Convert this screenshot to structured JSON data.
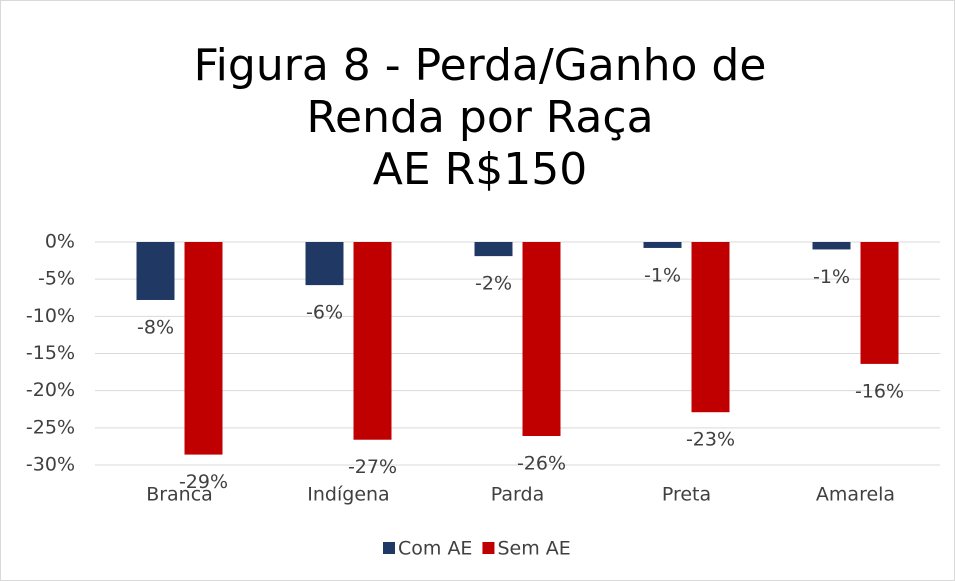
{
  "chart_data": {
    "type": "bar",
    "title": "Figura 8 - Perda/Ganho de Renda por Raça",
    "subtitle": "AE R$150",
    "categories": [
      "Branca",
      "Indígena",
      "Parda",
      "Preta",
      "Amarela"
    ],
    "series": [
      {
        "name": "Com AE",
        "color": "#1f3864",
        "values": [
          -7.8,
          -5.8,
          -1.9,
          -0.8,
          -1.0
        ],
        "value_labels": [
          "-8%",
          "-6%",
          "-2%",
          "-1%",
          "-1%"
        ]
      },
      {
        "name": "Sem AE",
        "color": "#c00000",
        "values": [
          -28.6,
          -26.6,
          -26.1,
          -22.9,
          -16.4
        ],
        "value_labels": [
          "-29%",
          "-27%",
          "-26%",
          "-23%",
          "-16%"
        ]
      }
    ],
    "ylim": [
      -30,
      0
    ],
    "yticks": [
      {
        "value": 0,
        "label": "0%"
      },
      {
        "value": -5,
        "label": "-5%"
      },
      {
        "value": -10,
        "label": "-10%"
      },
      {
        "value": -15,
        "label": "-15%"
      },
      {
        "value": -20,
        "label": "-20%"
      },
      {
        "value": -25,
        "label": "-25%"
      },
      {
        "value": -30,
        "label": "-30%"
      }
    ],
    "grid": true,
    "legend": "bottom"
  }
}
